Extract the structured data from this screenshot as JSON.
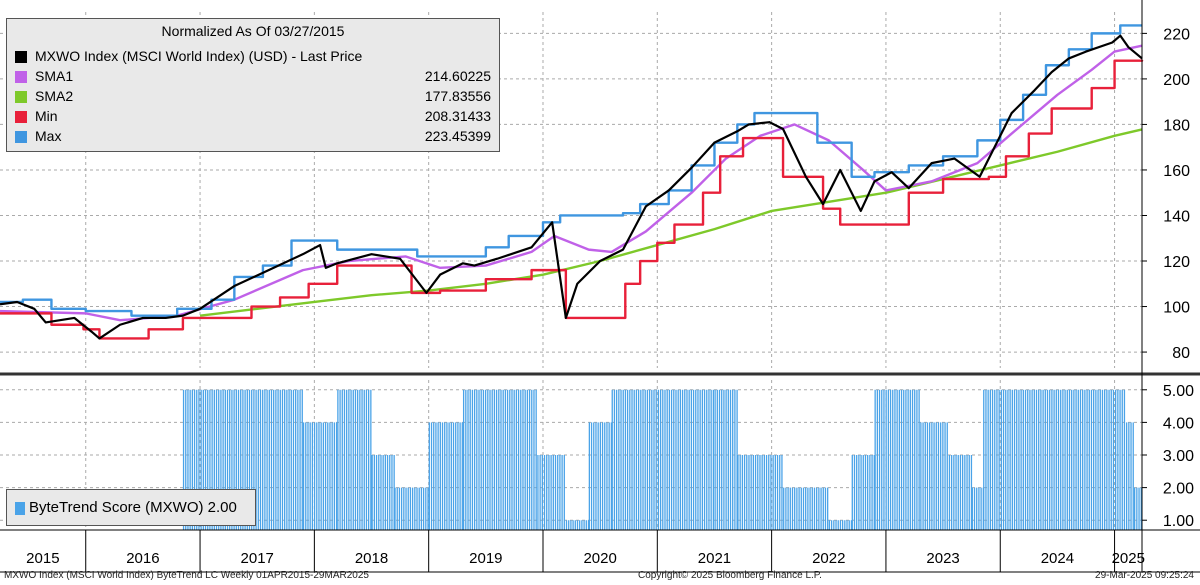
{
  "legend": {
    "title": "Normalized As Of 03/27/2015",
    "items": [
      {
        "name": "MXWO Index (MSCI World Index) (USD) - Last Price",
        "value": "",
        "color": "#000000"
      },
      {
        "name": "SMA1",
        "value": "214.60225",
        "color": "#c061e8"
      },
      {
        "name": "SMA2",
        "value": "177.83556",
        "color": "#7ec92a"
      },
      {
        "name": "Min",
        "value": "208.31433",
        "color": "#e8203a"
      },
      {
        "name": "Max",
        "value": "223.45399",
        "color": "#3f96e0"
      }
    ]
  },
  "score_legend": {
    "label": "ByteTrend Score (MXWO) 2.00",
    "color": "#4aa3e8"
  },
  "footer": {
    "left": "MXWO Index (MSCI World Index) ByteTrend LC  Weekly 01APR2015-29MAR2025",
    "center": "Copyright© 2025 Bloomberg Finance L.P.",
    "right": "29-Mar-2025  09:25:24"
  },
  "chart_data": [
    {
      "type": "line",
      "title": "Normalized As Of 03/27/2015",
      "x_ticks": [
        "2015",
        "2016",
        "2017",
        "2018",
        "2019",
        "2020",
        "2021",
        "2022",
        "2023",
        "2024",
        "2025"
      ],
      "y_ticks": [
        80,
        100,
        120,
        140,
        160,
        180,
        200,
        220
      ],
      "ylim": [
        73,
        225
      ],
      "xlim": [
        2015.25,
        2025.24
      ],
      "grid": true,
      "legend_position": "top-left",
      "series": [
        {
          "name": "MXWO Index (MSCI World Index) (USD) - Last Price",
          "color": "#000000",
          "x": [
            2015.25,
            2015.4,
            2015.55,
            2015.65,
            2015.9,
            2016.05,
            2016.12,
            2016.3,
            2016.5,
            2016.7,
            2016.85,
            2017.0,
            2017.3,
            2017.6,
            2017.9,
            2018.05,
            2018.1,
            2018.2,
            2018.5,
            2018.75,
            2018.98,
            2019.1,
            2019.3,
            2019.4,
            2019.6,
            2019.9,
            2020.08,
            2020.2,
            2020.3,
            2020.5,
            2020.7,
            2020.9,
            2021.1,
            2021.3,
            2021.5,
            2021.7,
            2021.8,
            2021.98,
            2022.1,
            2022.3,
            2022.45,
            2022.6,
            2022.78,
            2022.9,
            2023.05,
            2023.2,
            2023.4,
            2023.6,
            2023.82,
            2023.98,
            2024.1,
            2024.3,
            2024.45,
            2024.6,
            2024.75,
            2024.98,
            2025.05,
            2025.12,
            2025.24
          ],
          "values": [
            101,
            102,
            99,
            93,
            95,
            89,
            86,
            92,
            95,
            95,
            96,
            99,
            109,
            116,
            123,
            127,
            117,
            119,
            123,
            121,
            106,
            114,
            119,
            118,
            121,
            126,
            137,
            95,
            110,
            120,
            125,
            144,
            151,
            161,
            172,
            177,
            180,
            181,
            178,
            157,
            145,
            160,
            142,
            155,
            159,
            152,
            163,
            165,
            157,
            173,
            185,
            195,
            203,
            209,
            212,
            216,
            219,
            214,
            209
          ]
        },
        {
          "name": "SMA1",
          "color": "#c061e8",
          "x": [
            2015.25,
            2016.0,
            2016.3,
            2016.8,
            2017.3,
            2017.9,
            2018.3,
            2018.8,
            2019.1,
            2019.5,
            2019.9,
            2020.1,
            2020.4,
            2020.6,
            2020.9,
            2021.3,
            2021.6,
            2021.9,
            2022.2,
            2022.5,
            2022.8,
            2023.0,
            2023.4,
            2023.8,
            2024.1,
            2024.5,
            2024.8,
            2025.0,
            2025.24
          ],
          "values": [
            98,
            97,
            94,
            96,
            103,
            116,
            120,
            122,
            117,
            118,
            124,
            131,
            125,
            124,
            133,
            150,
            165,
            175,
            180,
            173,
            160,
            151,
            155,
            163,
            176,
            193,
            204,
            212,
            214.6
          ]
        },
        {
          "name": "SMA2",
          "color": "#7ec92a",
          "x": [
            2017.0,
            2017.5,
            2018.0,
            2018.5,
            2019.0,
            2019.5,
            2020.0,
            2020.5,
            2021.0,
            2021.5,
            2022.0,
            2022.5,
            2023.0,
            2023.5,
            2024.0,
            2024.5,
            2025.0,
            2025.24
          ],
          "values": [
            96,
            99,
            102,
            105,
            107,
            110,
            114,
            120,
            127,
            134,
            142,
            146,
            150,
            156,
            162,
            168,
            175,
            177.8
          ]
        },
        {
          "name": "Min",
          "color": "#e8203a",
          "step": true,
          "x": [
            2015.25,
            2015.55,
            2015.7,
            2015.98,
            2016.12,
            2016.55,
            2016.85,
            2017.2,
            2017.45,
            2017.7,
            2017.95,
            2018.2,
            2018.5,
            2018.85,
            2019.1,
            2019.5,
            2019.9,
            2020.2,
            2020.6,
            2020.72,
            2020.85,
            2021.0,
            2021.15,
            2021.25,
            2021.4,
            2021.55,
            2021.75,
            2022.1,
            2022.45,
            2022.6,
            2022.9,
            2023.2,
            2023.5,
            2023.9,
            2024.05,
            2024.25,
            2024.45,
            2024.6,
            2024.8,
            2025.0,
            2025.24
          ],
          "values": [
            97,
            97,
            92,
            90,
            86,
            90,
            95,
            95,
            100,
            104,
            110,
            118,
            118,
            106,
            107,
            112,
            116,
            95,
            95,
            110,
            120,
            128,
            136,
            136,
            150,
            166,
            174,
            157,
            143,
            136,
            136,
            150,
            156,
            157,
            166,
            176,
            187,
            187,
            196,
            208,
            208.3
          ]
        },
        {
          "name": "Max",
          "color": "#3f96e0",
          "step": true,
          "x": [
            2015.25,
            2015.45,
            2015.7,
            2016.0,
            2016.4,
            2016.8,
            2017.1,
            2017.3,
            2017.55,
            2017.8,
            2018.2,
            2018.5,
            2018.7,
            2018.9,
            2019.2,
            2019.5,
            2019.7,
            2020.0,
            2020.15,
            2020.5,
            2020.7,
            2020.85,
            2021.1,
            2021.3,
            2021.5,
            2021.7,
            2021.85,
            2022.4,
            2022.7,
            2022.9,
            2023.2,
            2023.5,
            2023.8,
            2024.0,
            2024.2,
            2024.4,
            2024.6,
            2024.8,
            2025.05,
            2025.24
          ],
          "values": [
            102,
            103,
            99,
            98,
            96,
            99,
            103,
            113,
            118,
            129,
            125,
            125,
            125,
            122,
            122,
            126,
            131,
            137,
            140,
            140,
            141,
            145,
            151,
            162,
            172,
            180,
            185,
            172,
            157,
            159,
            162,
            166,
            173,
            182,
            193,
            206,
            213,
            220,
            223.5,
            223.5
          ]
        }
      ]
    },
    {
      "type": "bar",
      "legend_label": "ByteTrend Score (MXWO) 2.00",
      "y_ticks": [
        "5.00",
        "4.00",
        "3.00",
        "2.00",
        "1.00"
      ],
      "ylim": [
        0.7,
        5.3
      ],
      "color": "#4aa3e8",
      "segments": [
        {
          "start": 2015.25,
          "end": 2016.85,
          "value": 0
        },
        {
          "start": 2016.85,
          "end": 2017.9,
          "value": 5
        },
        {
          "start": 2017.9,
          "end": 2018.2,
          "value": 4
        },
        {
          "start": 2018.2,
          "end": 2018.5,
          "value": 5
        },
        {
          "start": 2018.5,
          "end": 2018.7,
          "value": 3
        },
        {
          "start": 2018.7,
          "end": 2019.0,
          "value": 2
        },
        {
          "start": 2019.0,
          "end": 2019.3,
          "value": 4
        },
        {
          "start": 2019.3,
          "end": 2019.55,
          "value": 5
        },
        {
          "start": 2019.55,
          "end": 2019.95,
          "value": 5
        },
        {
          "start": 2019.95,
          "end": 2020.2,
          "value": 3
        },
        {
          "start": 2020.2,
          "end": 2020.4,
          "value": 1
        },
        {
          "start": 2020.4,
          "end": 2020.6,
          "value": 4
        },
        {
          "start": 2020.6,
          "end": 2021.5,
          "value": 5
        },
        {
          "start": 2021.5,
          "end": 2021.7,
          "value": 5
        },
        {
          "start": 2021.7,
          "end": 2022.1,
          "value": 3
        },
        {
          "start": 2022.1,
          "end": 2022.5,
          "value": 2
        },
        {
          "start": 2022.5,
          "end": 2022.7,
          "value": 1
        },
        {
          "start": 2022.7,
          "end": 2022.9,
          "value": 3
        },
        {
          "start": 2022.9,
          "end": 2023.3,
          "value": 5
        },
        {
          "start": 2023.3,
          "end": 2023.55,
          "value": 4
        },
        {
          "start": 2023.55,
          "end": 2023.75,
          "value": 3
        },
        {
          "start": 2023.75,
          "end": 2023.85,
          "value": 2
        },
        {
          "start": 2023.85,
          "end": 2025.1,
          "value": 5
        },
        {
          "start": 2025.1,
          "end": 2025.17,
          "value": 4
        },
        {
          "start": 2025.17,
          "end": 2025.24,
          "value": 2
        }
      ]
    }
  ]
}
